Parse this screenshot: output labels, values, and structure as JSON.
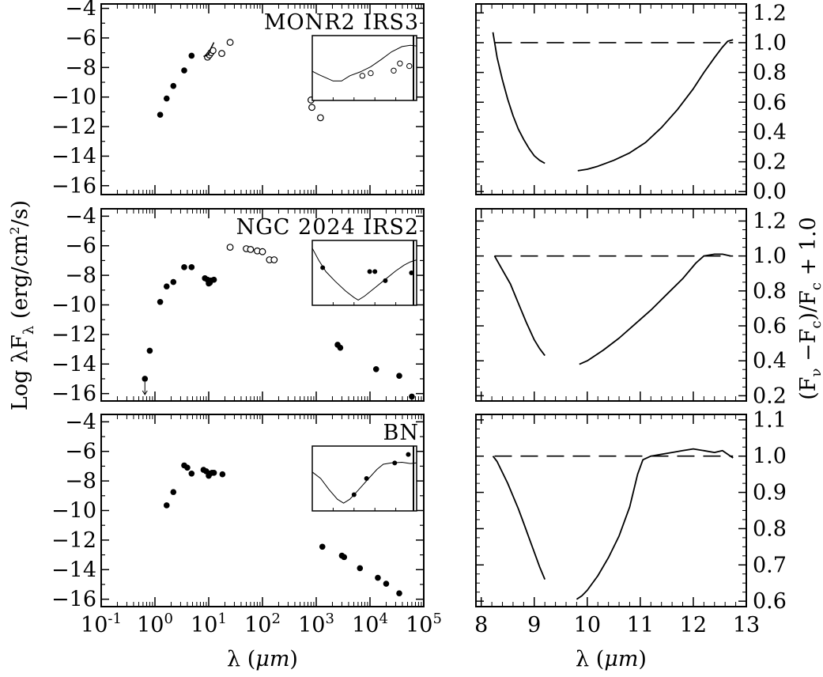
{
  "figure": {
    "left_ylabel": "Log λF_λ (erg/cm²/s)",
    "right_ylabel": "(F_ν −F_c)/F_c + 1.0",
    "left_xlabel": "λ (μm)",
    "right_xlabel": "λ (μm)"
  },
  "chart_data": [
    {
      "type": "scatter",
      "panel": "sed",
      "title": "MONR2 IRS3",
      "xscale": "log",
      "xlim": [
        0.1,
        100000
      ],
      "ylim": [
        -16.6,
        -3.7
      ],
      "yticks": [
        -4,
        -6,
        -8,
        -10,
        -12,
        -14,
        -16
      ],
      "xticks": [
        "10^-1",
        "10^0",
        "10^1",
        "10^2",
        "10^3",
        "10^4",
        "10^5"
      ],
      "xtick_labels_shown": false,
      "series": [
        {
          "marker": "filled",
          "points": [
            [
              1.25,
              -11.2
            ],
            [
              1.65,
              -10.1
            ],
            [
              2.2,
              -9.25
            ],
            [
              3.5,
              -8.2
            ],
            [
              4.8,
              -7.2
            ]
          ]
        },
        {
          "marker": "open",
          "points": [
            [
              9.5,
              -7.3
            ],
            [
              10.3,
              -7.15
            ],
            [
              11.0,
              -7.0
            ],
            [
              12.0,
              -6.85
            ],
            [
              17.5,
              -7.05
            ],
            [
              25.0,
              -6.3
            ],
            [
              800,
              -10.2
            ],
            [
              830,
              -10.7
            ],
            [
              1200,
              -11.4
            ]
          ]
        }
      ],
      "spectrum": [
        [
          8.0,
          -7.25
        ],
        [
          9.0,
          -7.2
        ],
        [
          10.0,
          -7.1
        ],
        [
          11.0,
          -6.7
        ],
        [
          12.5,
          -6.3
        ]
      ],
      "inset": {
        "xlim": [
          0,
          1
        ],
        "ylim": [
          0,
          1
        ],
        "line": [
          [
            0,
            0.45
          ],
          [
            0.06,
            0.4
          ],
          [
            0.13,
            0.35
          ],
          [
            0.2,
            0.3
          ],
          [
            0.28,
            0.3
          ],
          [
            0.36,
            0.38
          ],
          [
            0.46,
            0.44
          ],
          [
            0.56,
            0.52
          ],
          [
            0.66,
            0.63
          ],
          [
            0.76,
            0.75
          ],
          [
            0.86,
            0.83
          ],
          [
            0.94,
            0.85
          ],
          [
            1.0,
            0.84
          ]
        ],
        "points": [
          [
            0.48,
            0.38
          ],
          [
            0.56,
            0.42
          ],
          [
            0.78,
            0.46
          ],
          [
            0.84,
            0.57
          ],
          [
            0.93,
            0.53
          ]
        ],
        "marker": "open"
      }
    },
    {
      "type": "line",
      "panel": "feature",
      "xlim": [
        7.9,
        13.0
      ],
      "ylim": [
        -0.02,
        1.26
      ],
      "yticks": [
        0.0,
        0.2,
        0.4,
        0.6,
        0.8,
        1.0,
        1.2
      ],
      "ytick_labels": [
        "0.0",
        "0.2",
        "0.4",
        "0.6",
        "0.8",
        "1.0",
        "1.2"
      ],
      "xticks": [
        8,
        9,
        10,
        11,
        12,
        13
      ],
      "xtick_labels_shown": false,
      "continuum": [
        [
          8.25,
          1.0
        ],
        [
          12.75,
          1.0
        ]
      ],
      "segments": [
        [
          [
            8.22,
            1.07
          ],
          [
            8.3,
            0.9
          ],
          [
            8.4,
            0.75
          ],
          [
            8.5,
            0.62
          ],
          [
            8.6,
            0.51
          ],
          [
            8.7,
            0.42
          ],
          [
            8.8,
            0.35
          ],
          [
            8.9,
            0.29
          ],
          [
            9.0,
            0.24
          ],
          [
            9.1,
            0.21
          ],
          [
            9.2,
            0.19
          ]
        ],
        [
          [
            9.82,
            0.14
          ],
          [
            10.0,
            0.15
          ],
          [
            10.2,
            0.17
          ],
          [
            10.5,
            0.21
          ],
          [
            10.8,
            0.26
          ],
          [
            11.1,
            0.33
          ],
          [
            11.4,
            0.43
          ],
          [
            11.7,
            0.55
          ],
          [
            12.0,
            0.69
          ],
          [
            12.2,
            0.8
          ],
          [
            12.4,
            0.9
          ],
          [
            12.55,
            0.97
          ],
          [
            12.65,
            1.01
          ],
          [
            12.75,
            1.02
          ]
        ]
      ]
    },
    {
      "type": "scatter",
      "panel": "sed",
      "title": "NGC 2024 IRS2",
      "xscale": "log",
      "xlim": [
        0.1,
        100000
      ],
      "ylim": [
        -16.5,
        -3.5
      ],
      "yticks": [
        -4,
        -6,
        -8,
        -10,
        -12,
        -14,
        -16
      ],
      "xticks": [
        "10^-1",
        "10^0",
        "10^1",
        "10^2",
        "10^3",
        "10^4",
        "10^5"
      ],
      "xtick_labels_shown": false,
      "series": [
        {
          "marker": "filled",
          "points": [
            [
              0.65,
              -15.0
            ],
            [
              0.8,
              -13.1
            ],
            [
              1.25,
              -9.8
            ],
            [
              1.65,
              -8.75
            ],
            [
              2.2,
              -8.45
            ],
            [
              3.5,
              -7.45
            ],
            [
              4.8,
              -7.45
            ],
            [
              8.5,
              -8.2
            ],
            [
              9.5,
              -8.3
            ],
            [
              10.0,
              -8.55
            ],
            [
              10.5,
              -8.5
            ],
            [
              11.0,
              -8.35
            ],
            [
              12.5,
              -8.3
            ],
            [
              2500,
              -12.7
            ],
            [
              2800,
              -12.9
            ],
            [
              13000,
              -14.35
            ],
            [
              35000,
              -14.8
            ],
            [
              60000,
              -16.2
            ]
          ]
        },
        {
          "marker": "open",
          "points": [
            [
              25,
              -6.1
            ],
            [
              50,
              -6.2
            ],
            [
              60,
              -6.25
            ],
            [
              80,
              -6.35
            ],
            [
              100,
              -6.4
            ],
            [
              135,
              -6.95
            ],
            [
              165,
              -6.95
            ]
          ]
        }
      ],
      "upper_limit": [
        0.65,
        -15.0
      ],
      "inset": {
        "xlim": [
          0,
          1
        ],
        "ylim": [
          0,
          1
        ],
        "line": [
          [
            0,
            0.88
          ],
          [
            0.06,
            0.7
          ],
          [
            0.13,
            0.52
          ],
          [
            0.22,
            0.37
          ],
          [
            0.32,
            0.22
          ],
          [
            0.4,
            0.12
          ],
          [
            0.44,
            0.08
          ],
          [
            0.5,
            0.14
          ],
          [
            0.6,
            0.27
          ],
          [
            0.7,
            0.4
          ],
          [
            0.8,
            0.53
          ],
          [
            0.88,
            0.62
          ],
          [
            0.94,
            0.67
          ],
          [
            1.0,
            0.7
          ]
        ],
        "points": [
          [
            0.1,
            0.58
          ],
          [
            0.55,
            0.52
          ],
          [
            0.6,
            0.52
          ],
          [
            0.7,
            0.38
          ],
          [
            0.95,
            0.5
          ]
        ],
        "marker": "filled"
      }
    },
    {
      "type": "line",
      "panel": "feature",
      "xlim": [
        7.9,
        13.0
      ],
      "ylim": [
        0.17,
        1.27
      ],
      "yticks": [
        0.2,
        0.4,
        0.6,
        0.8,
        1.0,
        1.2
      ],
      "ytick_labels": [
        "0.2",
        "0.4",
        "0.6",
        "0.8",
        "1.0",
        "1.2"
      ],
      "xticks": [
        8,
        9,
        10,
        11,
        12,
        13
      ],
      "xtick_labels_shown": false,
      "continuum": [
        [
          8.25,
          1.0
        ],
        [
          12.75,
          1.0
        ]
      ],
      "segments": [
        [
          [
            8.25,
            1.0
          ],
          [
            8.4,
            0.92
          ],
          [
            8.55,
            0.84
          ],
          [
            8.7,
            0.73
          ],
          [
            8.85,
            0.62
          ],
          [
            9.0,
            0.52
          ],
          [
            9.1,
            0.47
          ],
          [
            9.2,
            0.43
          ]
        ],
        [
          [
            9.85,
            0.38
          ],
          [
            10.0,
            0.4
          ],
          [
            10.3,
            0.46
          ],
          [
            10.6,
            0.53
          ],
          [
            10.9,
            0.61
          ],
          [
            11.2,
            0.69
          ],
          [
            11.5,
            0.78
          ],
          [
            11.8,
            0.87
          ],
          [
            12.05,
            0.96
          ],
          [
            12.2,
            1.0
          ],
          [
            12.4,
            1.01
          ],
          [
            12.55,
            1.01
          ],
          [
            12.7,
            1.0
          ]
        ]
      ]
    },
    {
      "type": "scatter",
      "panel": "sed",
      "title": "BN",
      "xscale": "log",
      "xlim": [
        0.1,
        100000
      ],
      "ylim": [
        -16.5,
        -3.5
      ],
      "yticks": [
        -4,
        -6,
        -8,
        -10,
        -12,
        -14,
        -16
      ],
      "xticks": [
        "10^-1",
        "10^0",
        "10^1",
        "10^2",
        "10^3",
        "10^4",
        "10^5"
      ],
      "xtick_labels_shown": true,
      "series": [
        {
          "marker": "filled",
          "points": [
            [
              1.65,
              -9.65
            ],
            [
              2.2,
              -8.75
            ],
            [
              3.5,
              -6.95
            ],
            [
              4.0,
              -7.1
            ],
            [
              4.8,
              -7.5
            ],
            [
              8.0,
              -7.25
            ],
            [
              9.0,
              -7.35
            ],
            [
              10.0,
              -7.65
            ],
            [
              10.5,
              -7.5
            ],
            [
              11.5,
              -7.45
            ],
            [
              12.5,
              -7.45
            ],
            [
              18.0,
              -7.55
            ],
            [
              1300,
              -12.45
            ],
            [
              3000,
              -13.05
            ],
            [
              3300,
              -13.15
            ],
            [
              6500,
              -13.9
            ],
            [
              14000,
              -14.55
            ],
            [
              20000,
              -14.95
            ],
            [
              35000,
              -15.6
            ]
          ]
        }
      ],
      "inset": {
        "xlim": [
          0,
          1
        ],
        "ylim": [
          0,
          1
        ],
        "line": [
          [
            0,
            0.6
          ],
          [
            0.08,
            0.5
          ],
          [
            0.16,
            0.33
          ],
          [
            0.24,
            0.18
          ],
          [
            0.3,
            0.12
          ],
          [
            0.36,
            0.18
          ],
          [
            0.44,
            0.32
          ],
          [
            0.54,
            0.5
          ],
          [
            0.62,
            0.64
          ],
          [
            0.68,
            0.72
          ],
          [
            0.76,
            0.74
          ],
          [
            0.86,
            0.75
          ],
          [
            0.94,
            0.73
          ],
          [
            1.0,
            0.74
          ]
        ],
        "points": [
          [
            0.4,
            0.25
          ],
          [
            0.52,
            0.5
          ],
          [
            0.79,
            0.74
          ],
          [
            0.92,
            0.87
          ]
        ],
        "marker": "filled"
      }
    },
    {
      "type": "line",
      "panel": "feature",
      "xlim": [
        7.9,
        13.0
      ],
      "ylim": [
        0.585,
        1.115
      ],
      "yticks": [
        0.6,
        0.7,
        0.8,
        0.9,
        1.0,
        1.1
      ],
      "ytick_labels": [
        "0.6",
        "0.7",
        "0.8",
        "0.9",
        "1.0",
        "1.1"
      ],
      "xticks": [
        8,
        9,
        10,
        11,
        12,
        13
      ],
      "xtick_labels": [
        "8",
        "9",
        "10",
        "11",
        "12",
        "13"
      ],
      "xtick_labels_shown": true,
      "continuum": [
        [
          8.25,
          1.0
        ],
        [
          12.75,
          1.0
        ]
      ],
      "segments": [
        [
          [
            8.22,
            1.0
          ],
          [
            8.3,
            0.985
          ],
          [
            8.4,
            0.955
          ],
          [
            8.5,
            0.925
          ],
          [
            8.6,
            0.89
          ],
          [
            8.7,
            0.855
          ],
          [
            8.8,
            0.815
          ],
          [
            8.9,
            0.775
          ],
          [
            9.0,
            0.735
          ],
          [
            9.1,
            0.695
          ],
          [
            9.2,
            0.66
          ]
        ],
        [
          [
            9.8,
            0.605
          ],
          [
            9.9,
            0.615
          ],
          [
            10.0,
            0.63
          ],
          [
            10.2,
            0.67
          ],
          [
            10.4,
            0.72
          ],
          [
            10.6,
            0.78
          ],
          [
            10.8,
            0.86
          ],
          [
            10.95,
            0.95
          ],
          [
            11.05,
            0.99
          ],
          [
            11.2,
            1.0
          ],
          [
            11.4,
            1.005
          ],
          [
            11.6,
            1.01
          ],
          [
            11.8,
            1.015
          ],
          [
            12.0,
            1.02
          ],
          [
            12.2,
            1.015
          ],
          [
            12.4,
            1.01
          ],
          [
            12.55,
            1.015
          ],
          [
            12.65,
            1.005
          ],
          [
            12.75,
            0.995
          ]
        ]
      ]
    }
  ]
}
